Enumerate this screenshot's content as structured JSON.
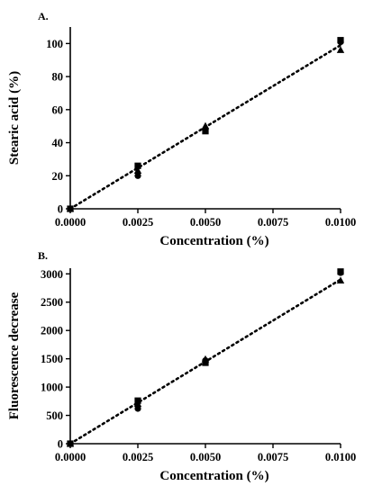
{
  "chart_data": [
    {
      "type": "scatter",
      "panel_label": "A.",
      "xlabel": "Concentration (%)",
      "ylabel": "Stearic acid (%)",
      "xlim": [
        0,
        0.01
      ],
      "ylim": [
        0,
        110
      ],
      "x_ticks": [
        "0.0000",
        "0.0025",
        "0.0050",
        "0.0075",
        "0.0100"
      ],
      "x_tick_values": [
        0,
        0.0025,
        0.005,
        0.0075,
        0.01
      ],
      "y_ticks": [
        "0",
        "20",
        "40",
        "60",
        "80",
        "100"
      ],
      "y_tick_values": [
        0,
        20,
        40,
        60,
        80,
        100
      ],
      "series": [
        {
          "marker": "circle",
          "x": [
            0,
            0.0025,
            0.005,
            0.01
          ],
          "y": [
            0,
            20,
            48,
            101
          ]
        },
        {
          "marker": "square",
          "x": [
            0,
            0.0025,
            0.005,
            0.01
          ],
          "y": [
            0,
            26,
            47,
            102
          ]
        },
        {
          "marker": "triangle",
          "x": [
            0,
            0.0025,
            0.005,
            0.01
          ],
          "y": [
            0,
            23,
            50,
            96
          ]
        }
      ],
      "fit_line": {
        "x": [
          0,
          0.01
        ],
        "y": [
          0,
          99
        ]
      },
      "grid": false
    },
    {
      "type": "scatter",
      "panel_label": "B.",
      "xlabel": "Concentration (%)",
      "ylabel": "Fluorescence decrease",
      "xlim": [
        0,
        0.01
      ],
      "ylim": [
        0,
        3100
      ],
      "x_ticks": [
        "0.0000",
        "0.0025",
        "0.0050",
        "0.0075",
        "0.0100"
      ],
      "x_tick_values": [
        0,
        0.0025,
        0.005,
        0.0075,
        0.01
      ],
      "y_ticks": [
        "0",
        "500",
        "1000",
        "1500",
        "2000",
        "2500",
        "3000"
      ],
      "y_tick_values": [
        0,
        500,
        1000,
        1500,
        2000,
        2500,
        3000
      ],
      "series": [
        {
          "marker": "circle",
          "x": [
            0,
            0.0025,
            0.005,
            0.01
          ],
          "y": [
            0,
            620,
            1470,
            3020
          ]
        },
        {
          "marker": "square",
          "x": [
            0,
            0.0025,
            0.005,
            0.01
          ],
          "y": [
            0,
            760,
            1430,
            3040
          ]
        },
        {
          "marker": "triangle",
          "x": [
            0,
            0.0025,
            0.005,
            0.01
          ],
          "y": [
            0,
            700,
            1490,
            2880
          ]
        }
      ],
      "fit_line": {
        "x": [
          0,
          0.01
        ],
        "y": [
          0,
          2900
        ]
      },
      "grid": false
    }
  ]
}
